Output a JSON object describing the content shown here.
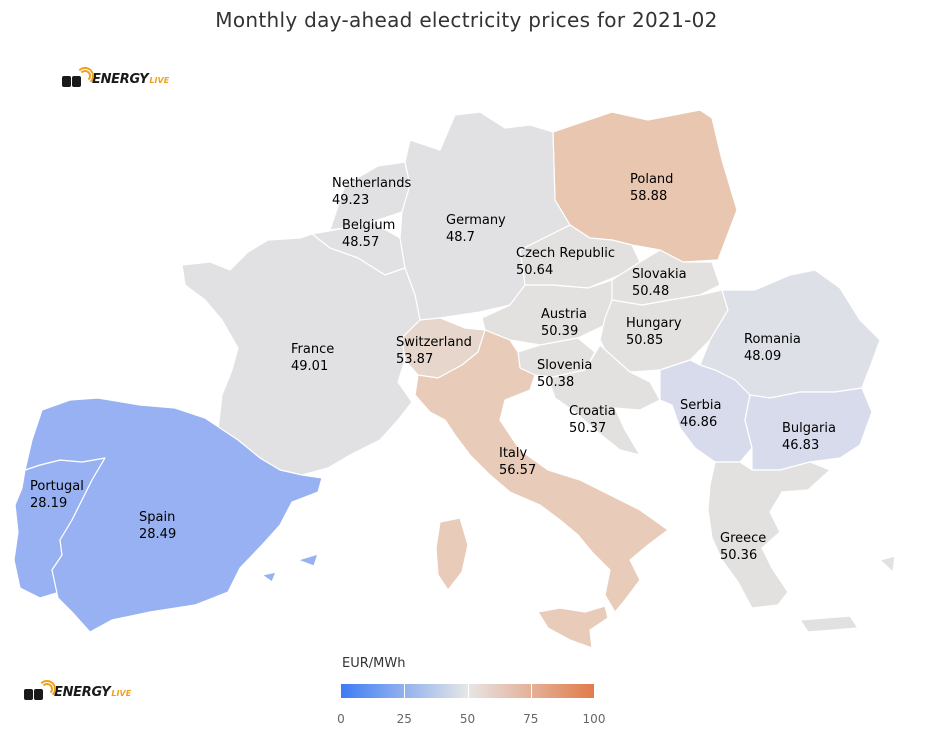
{
  "title": "Monthly day-ahead electricity prices for 2021-02",
  "logo": {
    "text": "ENERGY",
    "accent": "LIVE"
  },
  "legend": {
    "title": "EUR/MWh",
    "min": 0,
    "max": 100,
    "ticks": [
      "0",
      "25",
      "50",
      "75",
      "100"
    ],
    "colors": [
      "#3d7cf5",
      "#e6e6e6",
      "#e27b4b"
    ]
  },
  "countries": [
    {
      "name": "Poland",
      "value": "58.88",
      "color": "#e8c6b0"
    },
    {
      "name": "Netherlands",
      "value": "49.23",
      "color": "#e1e1e4"
    },
    {
      "name": "Belgium",
      "value": "48.57",
      "color": "#e1e1e4"
    },
    {
      "name": "Germany",
      "value": "48.7",
      "color": "#e1e1e4"
    },
    {
      "name": "Czech Republic",
      "value": "50.64",
      "color": "#e3e1df"
    },
    {
      "name": "Slovakia",
      "value": "50.48",
      "color": "#e3e1df"
    },
    {
      "name": "Austria",
      "value": "50.39",
      "color": "#e3e1df"
    },
    {
      "name": "Hungary",
      "value": "50.85",
      "color": "#e3e1df"
    },
    {
      "name": "Romania",
      "value": "48.09",
      "color": "#dee0e8"
    },
    {
      "name": "France",
      "value": "49.01",
      "color": "#e1e1e4"
    },
    {
      "name": "Switzerland",
      "value": "53.87",
      "color": "#e6d6cb"
    },
    {
      "name": "Slovenia",
      "value": "50.38",
      "color": "#e3e1df"
    },
    {
      "name": "Croatia",
      "value": "50.37",
      "color": "#e3e1df"
    },
    {
      "name": "Serbia",
      "value": "46.86",
      "color": "#d8dbec"
    },
    {
      "name": "Bulgaria",
      "value": "46.83",
      "color": "#d8dbec"
    },
    {
      "name": "Italy",
      "value": "56.57",
      "color": "#e8cbb8"
    },
    {
      "name": "Portugal",
      "value": "28.19",
      "color": "#97b1f2"
    },
    {
      "name": "Spain",
      "value": "28.49",
      "color": "#97b1f2"
    },
    {
      "name": "Greece",
      "value": "50.36",
      "color": "#e3e1df"
    }
  ]
}
